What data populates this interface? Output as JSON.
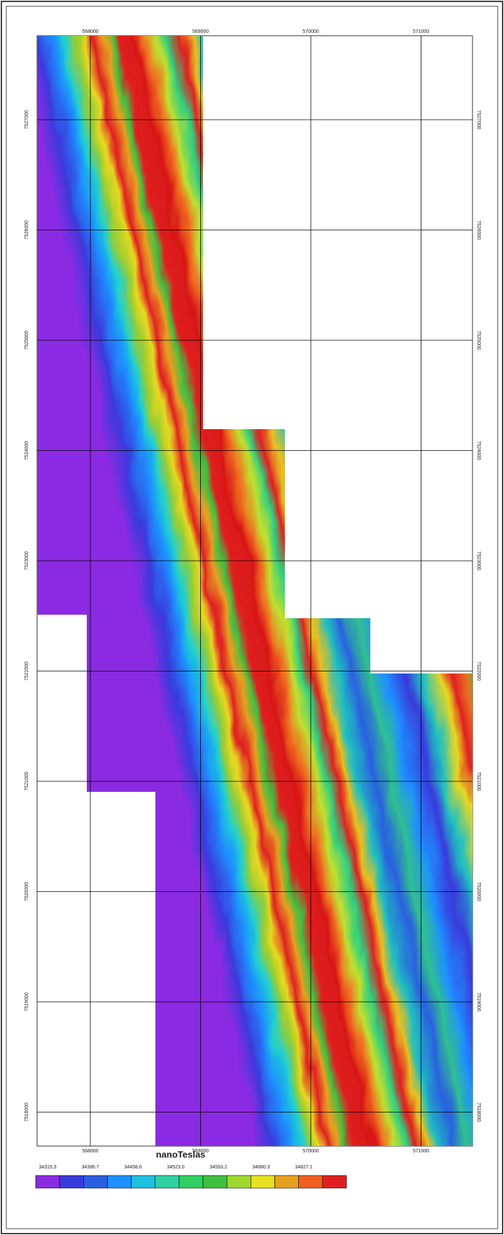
{
  "map": {
    "xticks": [
      568000,
      569000,
      570000,
      571000
    ],
    "yticks": [
      7527000,
      7526000,
      7525000,
      7524000,
      7523000,
      7522000,
      7521000,
      7520000,
      7519000,
      7518000
    ],
    "legend": {
      "title": "nanoTeslas",
      "values": [
        34315.3,
        34396.7,
        34458.6,
        {
          "value": 34523,
          "label": "34523.0"
        },
        34593.2,
        34680.3,
        34827.1
      ]
    }
  }
}
